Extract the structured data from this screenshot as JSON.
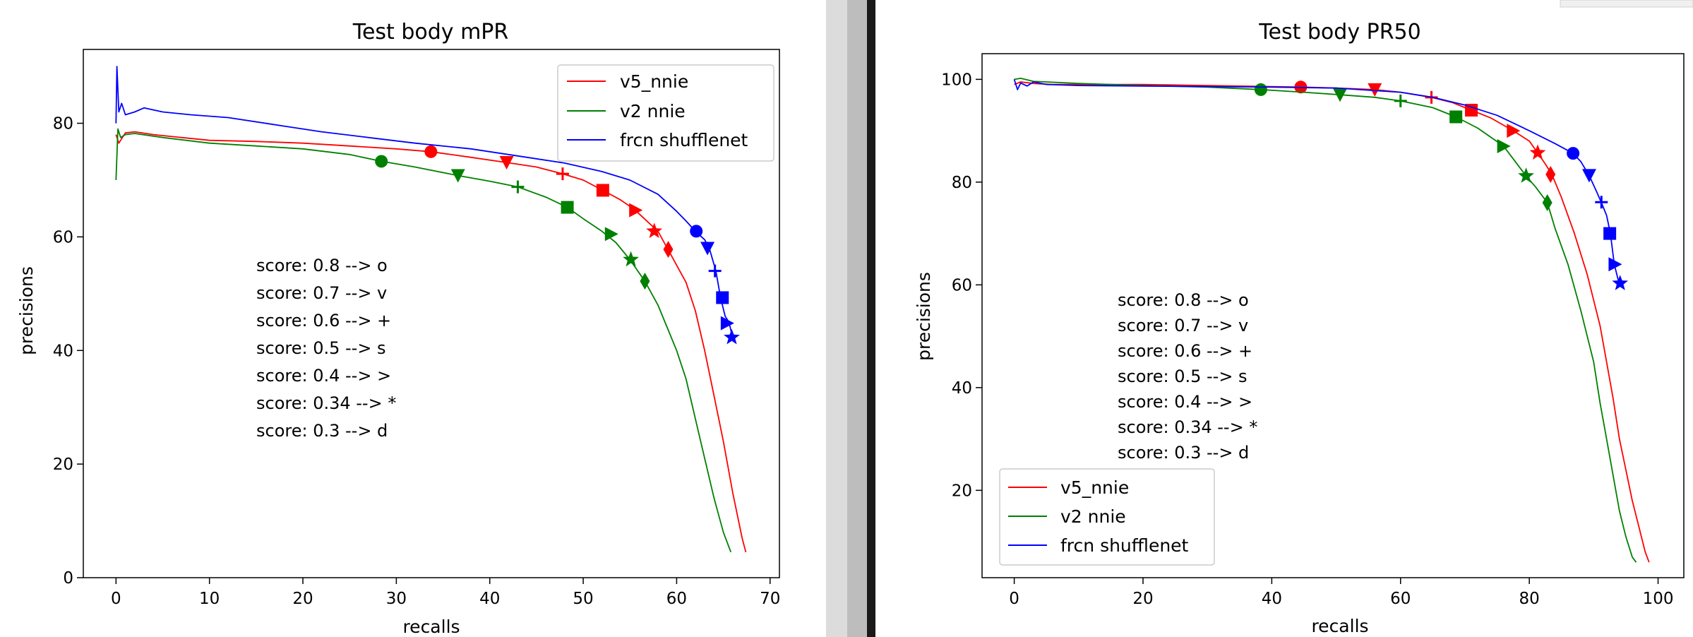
{
  "chart_data": [
    {
      "type": "line",
      "title": "Test body mPR",
      "xlabel": "recalls",
      "ylabel": "precisions",
      "xlim": [
        -3.5,
        71
      ],
      "ylim": [
        0,
        93
      ],
      "xticks": [
        "0",
        "10",
        "20",
        "30",
        "40",
        "50",
        "60",
        "70"
      ],
      "yticks": [
        "0",
        "20",
        "40",
        "60",
        "80"
      ],
      "grid": false,
      "legend_position": "top-right",
      "annotations": [
        "score: 0.8 --> o",
        "score: 0.7 --> v",
        "score: 0.6 --> +",
        "score: 0.5 --> s",
        "score: 0.4 --> >",
        "score: 0.34 --> *",
        "score: 0.3 --> d"
      ],
      "series": [
        {
          "name": "v5_nnie",
          "color": "#ff0000",
          "x": [
            0,
            0.3,
            1,
            2,
            4,
            7,
            10,
            15,
            20,
            25,
            30,
            33.7,
            38,
            41.8,
            45,
            47.8,
            50,
            52.1,
            54,
            55.5,
            57,
            58,
            59,
            60,
            61,
            62,
            63,
            64,
            65,
            66,
            67,
            67.4
          ],
          "y": [
            78,
            76.5,
            78.3,
            78.5,
            78,
            77.5,
            77,
            76.8,
            76.5,
            76,
            75.5,
            75,
            74,
            73.1,
            72.3,
            71.1,
            70,
            68.2,
            66.5,
            64.8,
            62.5,
            61,
            58,
            55,
            52,
            47,
            40,
            32,
            24,
            15,
            7,
            4.5
          ],
          "markers": [
            {
              "x": 33.7,
              "y": 75,
              "shape": "o"
            },
            {
              "x": 41.8,
              "y": 73.1,
              "shape": "v"
            },
            {
              "x": 47.8,
              "y": 71.1,
              "shape": "+"
            },
            {
              "x": 52.1,
              "y": 68.2,
              "shape": "s"
            },
            {
              "x": 55.6,
              "y": 64.7,
              "shape": ">"
            },
            {
              "x": 57.6,
              "y": 61,
              "shape": "*"
            },
            {
              "x": 59.1,
              "y": 57.8,
              "shape": "d"
            }
          ]
        },
        {
          "name": "v2 nnie",
          "color": "#008000",
          "x": [
            0,
            0.2,
            0.5,
            1,
            2,
            5,
            10,
            15,
            20,
            25,
            28.4,
            32,
            36.6,
            40,
            43,
            46,
            48.3,
            50,
            52,
            53.5,
            55,
            56.6,
            58,
            59,
            60,
            61,
            62,
            63,
            64,
            65,
            65.8
          ],
          "y": [
            70,
            79,
            77.5,
            78,
            78.2,
            77.5,
            76.5,
            76,
            75.5,
            74.5,
            73.3,
            72.3,
            70.8,
            69.8,
            68.8,
            67,
            65.2,
            63.2,
            61,
            59,
            56,
            52.2,
            48,
            44,
            40,
            35,
            28,
            21,
            14,
            8,
            4.5
          ],
          "markers": [
            {
              "x": 28.4,
              "y": 73.3,
              "shape": "o"
            },
            {
              "x": 36.6,
              "y": 70.8,
              "shape": "v"
            },
            {
              "x": 43,
              "y": 68.8,
              "shape": "+"
            },
            {
              "x": 48.3,
              "y": 65.2,
              "shape": "s"
            },
            {
              "x": 53,
              "y": 60.5,
              "shape": ">"
            },
            {
              "x": 55.1,
              "y": 56,
              "shape": "*"
            },
            {
              "x": 56.6,
              "y": 52.2,
              "shape": "d"
            }
          ]
        },
        {
          "name": "frcn shufflenet",
          "color": "#0000ff",
          "x": [
            0,
            0.1,
            0.3,
            0.6,
            1,
            2,
            3,
            5,
            8,
            12,
            18,
            22,
            28,
            32,
            38,
            42,
            48,
            52,
            55,
            58,
            60,
            61,
            62,
            63,
            63.5,
            64.2,
            64.7,
            65.2,
            65.6,
            66
          ],
          "y": [
            80,
            90,
            82,
            83.5,
            81.5,
            82,
            82.7,
            82,
            81.5,
            81,
            79.5,
            78.5,
            77.3,
            76.5,
            75.5,
            74.5,
            73,
            71.5,
            70,
            67.5,
            64.5,
            62.8,
            61,
            59.5,
            58,
            54,
            49.3,
            46,
            45,
            42.2
          ],
          "markers": [
            {
              "x": 62.1,
              "y": 61,
              "shape": "o"
            },
            {
              "x": 63.3,
              "y": 58,
              "shape": "v"
            },
            {
              "x": 64.1,
              "y": 54,
              "shape": "+"
            },
            {
              "x": 64.9,
              "y": 49.3,
              "shape": "s"
            },
            {
              "x": 65.4,
              "y": 44.8,
              "shape": ">"
            },
            {
              "x": 65.9,
              "y": 42.3,
              "shape": "*"
            }
          ]
        }
      ]
    },
    {
      "type": "line",
      "title": "Test body PR50",
      "xlabel": "recalls",
      "ylabel": "precisions",
      "xlim": [
        -5,
        104
      ],
      "ylim": [
        3,
        105
      ],
      "xticks": [
        "0",
        "20",
        "40",
        "60",
        "80",
        "100"
      ],
      "yticks": [
        "20",
        "40",
        "60",
        "80",
        "100"
      ],
      "grid": false,
      "legend_position": "bottom-left",
      "annotations": [
        "score: 0.8 --> o",
        "score: 0.7 --> v",
        "score: 0.6 --> +",
        "score: 0.5 --> s",
        "score: 0.4 --> >",
        "score: 0.34 --> *",
        "score: 0.3 --> d"
      ],
      "series": [
        {
          "name": "v5_nnie",
          "color": "#ff0000",
          "x": [
            0,
            1,
            3,
            6,
            10,
            20,
            30,
            40,
            44.5,
            50,
            56,
            60,
            64.8,
            68,
            71,
            74,
            77.5,
            80,
            81.3,
            82.5,
            83.5,
            85,
            87,
            89,
            91,
            92,
            93,
            94,
            95,
            96,
            97,
            98,
            98.6
          ],
          "y": [
            99,
            99.5,
            99.2,
            99,
            99,
            99,
            98.8,
            98.6,
            98.5,
            98.3,
            98,
            97.5,
            96.5,
            95.5,
            94,
            92.5,
            90,
            88,
            85.7,
            83.5,
            81.5,
            77,
            70,
            62,
            52,
            45,
            38,
            30,
            24,
            18,
            13,
            8,
            6
          ],
          "markers": [
            {
              "x": 44.5,
              "y": 98.5,
              "shape": "o"
            },
            {
              "x": 56,
              "y": 98,
              "shape": "v"
            },
            {
              "x": 64.8,
              "y": 96.5,
              "shape": "+"
            },
            {
              "x": 71,
              "y": 94,
              "shape": "s"
            },
            {
              "x": 77.5,
              "y": 90,
              "shape": ">"
            },
            {
              "x": 81.3,
              "y": 85.7,
              "shape": "*"
            },
            {
              "x": 83.3,
              "y": 81.5,
              "shape": "d"
            }
          ]
        },
        {
          "name": "v2 nnie",
          "color": "#008000",
          "x": [
            0,
            1,
            3,
            5,
            10,
            20,
            30,
            38.3,
            45,
            50.6,
            56,
            60,
            65,
            68.6,
            72,
            76,
            79.5,
            81,
            82.8,
            84,
            86,
            88,
            90,
            91,
            92,
            93,
            94,
            95,
            96,
            96.6
          ],
          "y": [
            100,
            100.2,
            99.6,
            99.5,
            99.2,
            98.8,
            98.5,
            98,
            97.5,
            97,
            96.5,
            95.8,
            94.5,
            92.7,
            90.5,
            87,
            81.2,
            79,
            76,
            71,
            64,
            55,
            45,
            37,
            30,
            23,
            16,
            11,
            7,
            6
          ],
          "markers": [
            {
              "x": 38.3,
              "y": 98,
              "shape": "o"
            },
            {
              "x": 50.6,
              "y": 97,
              "shape": "v"
            },
            {
              "x": 60,
              "y": 95.8,
              "shape": "+"
            },
            {
              "x": 68.6,
              "y": 92.7,
              "shape": "s"
            },
            {
              "x": 76,
              "y": 87,
              "shape": ">"
            },
            {
              "x": 79.5,
              "y": 81.2,
              "shape": "*"
            },
            {
              "x": 82.8,
              "y": 76,
              "shape": "d"
            }
          ]
        },
        {
          "name": "frcn shufflenet",
          "color": "#0000ff",
          "x": [
            0,
            0.5,
            1,
            2,
            3,
            5,
            10,
            20,
            30,
            40,
            50,
            60,
            65,
            70,
            75,
            80,
            84,
            86.8,
            88,
            89.3,
            90.5,
            91.2,
            92,
            92.6,
            93.2,
            93.8,
            94.2
          ],
          "y": [
            100,
            98,
            99.3,
            98.7,
            99.5,
            99,
            98.8,
            98.7,
            98.6,
            98.5,
            98.3,
            97.5,
            96.5,
            95,
            93,
            90,
            87.5,
            85.6,
            84,
            81.3,
            78,
            76,
            73.5,
            70,
            64,
            61,
            60.3
          ],
          "markers": [
            {
              "x": 86.8,
              "y": 85.6,
              "shape": "o"
            },
            {
              "x": 89.3,
              "y": 81.3,
              "shape": "v"
            },
            {
              "x": 91.2,
              "y": 76.1,
              "shape": "+"
            },
            {
              "x": 92.5,
              "y": 70,
              "shape": "s"
            },
            {
              "x": 93.3,
              "y": 64,
              "shape": ">"
            },
            {
              "x": 94.1,
              "y": 60.3,
              "shape": "*"
            }
          ]
        }
      ]
    }
  ]
}
